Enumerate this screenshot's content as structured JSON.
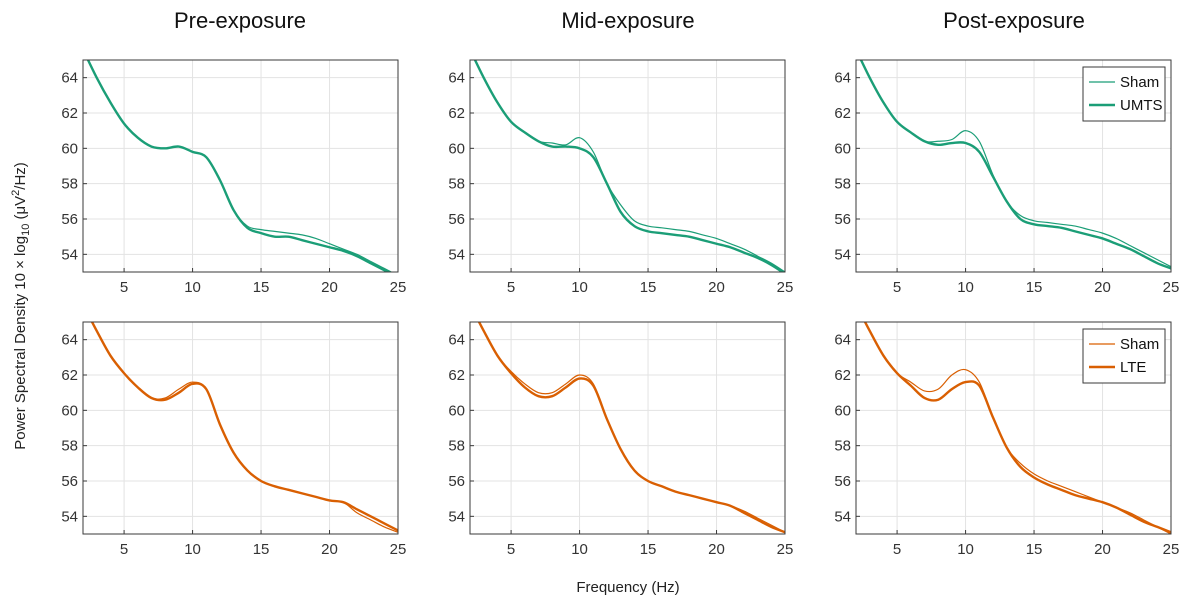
{
  "figure": {
    "col_titles": [
      "Pre-exposure",
      "Mid-exposure",
      "Post-exposure"
    ],
    "ylabel": {
      "prefix": "Power Spectral Density 10 × log",
      "sub": "10",
      "suffix": " (μV",
      "sup": "2",
      "tail": "/Hz)"
    },
    "xlabel": "Frequency (Hz)"
  },
  "chart_data": [
    {
      "type": "line",
      "title": "Pre-exposure",
      "row": 0,
      "col": 0,
      "xlim": [
        2,
        25
      ],
      "ylim": [
        53,
        65
      ],
      "grid": true,
      "xticks": [
        5,
        10,
        15,
        20,
        25
      ],
      "yticks": [
        54,
        56,
        58,
        60,
        62,
        64
      ],
      "x": [
        2,
        3,
        4,
        5,
        6,
        7,
        8,
        9,
        10,
        11,
        12,
        13,
        14,
        15,
        16,
        17,
        18,
        19,
        20,
        21,
        22,
        23,
        24,
        25
      ],
      "series": [
        {
          "name": "Sham",
          "color": "#1b9e77",
          "width": 1.2,
          "values": [
            65.6,
            64.0,
            62.6,
            61.4,
            60.6,
            60.1,
            60.0,
            60.1,
            59.8,
            59.5,
            58.2,
            56.5,
            55.6,
            55.4,
            55.3,
            55.2,
            55.1,
            54.9,
            54.6,
            54.3,
            54.0,
            53.6,
            53.2,
            52.8
          ]
        },
        {
          "name": "UMTS",
          "color": "#1b9e77",
          "width": 2.4,
          "values": [
            65.6,
            64.0,
            62.6,
            61.4,
            60.6,
            60.1,
            60.0,
            60.1,
            59.8,
            59.5,
            58.2,
            56.5,
            55.5,
            55.2,
            55.0,
            55.0,
            54.8,
            54.6,
            54.4,
            54.2,
            53.9,
            53.5,
            53.1,
            52.7
          ]
        }
      ]
    },
    {
      "type": "line",
      "title": "Mid-exposure",
      "row": 0,
      "col": 1,
      "xlim": [
        2,
        25
      ],
      "ylim": [
        53,
        65
      ],
      "grid": true,
      "xticks": [
        5,
        10,
        15,
        20,
        25
      ],
      "yticks": [
        54,
        56,
        58,
        60,
        62,
        64
      ],
      "x": [
        2,
        3,
        4,
        5,
        6,
        7,
        8,
        9,
        10,
        11,
        12,
        13,
        14,
        15,
        16,
        17,
        18,
        19,
        20,
        21,
        22,
        23,
        24,
        25
      ],
      "series": [
        {
          "name": "Sham",
          "color": "#1b9e77",
          "width": 1.2,
          "values": [
            65.6,
            64.0,
            62.6,
            61.5,
            60.9,
            60.4,
            60.3,
            60.2,
            60.6,
            59.8,
            58.0,
            56.8,
            55.9,
            55.6,
            55.5,
            55.4,
            55.3,
            55.1,
            54.9,
            54.6,
            54.3,
            53.9,
            53.5,
            53.0
          ]
        },
        {
          "name": "UMTS",
          "color": "#1b9e77",
          "width": 2.4,
          "values": [
            65.6,
            64.0,
            62.6,
            61.5,
            60.9,
            60.4,
            60.1,
            60.1,
            60.0,
            59.5,
            58.0,
            56.4,
            55.6,
            55.3,
            55.2,
            55.1,
            55.0,
            54.8,
            54.6,
            54.4,
            54.1,
            53.8,
            53.4,
            52.9
          ]
        }
      ]
    },
    {
      "type": "line",
      "title": "Post-exposure",
      "row": 0,
      "col": 2,
      "xlim": [
        2,
        25
      ],
      "ylim": [
        53,
        65
      ],
      "grid": true,
      "legend": "top-right",
      "xticks": [
        5,
        10,
        15,
        20,
        25
      ],
      "yticks": [
        54,
        56,
        58,
        60,
        62,
        64
      ],
      "x": [
        2,
        3,
        4,
        5,
        6,
        7,
        8,
        9,
        10,
        11,
        12,
        13,
        14,
        15,
        16,
        17,
        18,
        19,
        20,
        21,
        22,
        23,
        24,
        25
      ],
      "series": [
        {
          "name": "Sham",
          "color": "#1b9e77",
          "width": 1.2,
          "values": [
            65.6,
            64.0,
            62.6,
            61.5,
            60.9,
            60.4,
            60.4,
            60.5,
            61.0,
            60.4,
            58.5,
            57.0,
            56.2,
            55.9,
            55.8,
            55.7,
            55.6,
            55.4,
            55.2,
            54.9,
            54.5,
            54.1,
            53.7,
            53.3
          ]
        },
        {
          "name": "UMTS",
          "color": "#1b9e77",
          "width": 2.4,
          "values": [
            65.6,
            64.0,
            62.6,
            61.5,
            60.9,
            60.4,
            60.2,
            60.3,
            60.3,
            59.8,
            58.4,
            57.0,
            56.0,
            55.7,
            55.6,
            55.5,
            55.3,
            55.1,
            54.9,
            54.6,
            54.3,
            53.9,
            53.5,
            53.2
          ]
        }
      ]
    },
    {
      "type": "line",
      "title": "",
      "row": 1,
      "col": 0,
      "xlim": [
        2,
        25
      ],
      "ylim": [
        53,
        65
      ],
      "grid": true,
      "xticks": [
        5,
        10,
        15,
        20,
        25
      ],
      "yticks": [
        54,
        56,
        58,
        60,
        62,
        64
      ],
      "x": [
        2,
        3,
        4,
        5,
        6,
        7,
        8,
        9,
        10,
        11,
        12,
        13,
        14,
        15,
        16,
        17,
        18,
        19,
        20,
        21,
        22,
        23,
        24,
        25
      ],
      "series": [
        {
          "name": "Sham",
          "color": "#d95f02",
          "width": 1.2,
          "values": [
            66.0,
            64.5,
            63.1,
            62.1,
            61.3,
            60.7,
            60.7,
            61.2,
            61.6,
            61.2,
            59.2,
            57.6,
            56.6,
            56.0,
            55.7,
            55.5,
            55.3,
            55.1,
            54.9,
            54.8,
            54.2,
            53.8,
            53.4,
            53.1
          ]
        },
        {
          "name": "LTE",
          "color": "#d95f02",
          "width": 2.4,
          "values": [
            66.0,
            64.5,
            63.1,
            62.1,
            61.3,
            60.7,
            60.6,
            61.0,
            61.5,
            61.2,
            59.2,
            57.6,
            56.6,
            56.0,
            55.7,
            55.5,
            55.3,
            55.1,
            54.9,
            54.8,
            54.4,
            54.0,
            53.6,
            53.2
          ]
        }
      ]
    },
    {
      "type": "line",
      "title": "",
      "row": 1,
      "col": 1,
      "xlim": [
        2,
        25
      ],
      "ylim": [
        53,
        65
      ],
      "grid": true,
      "xticks": [
        5,
        10,
        15,
        20,
        25
      ],
      "yticks": [
        54,
        56,
        58,
        60,
        62,
        64
      ],
      "x": [
        2,
        3,
        4,
        5,
        6,
        7,
        8,
        9,
        10,
        11,
        12,
        13,
        14,
        15,
        16,
        17,
        18,
        19,
        20,
        21,
        22,
        23,
        24,
        25
      ],
      "series": [
        {
          "name": "Sham",
          "color": "#d95f02",
          "width": 1.2,
          "values": [
            66.0,
            64.5,
            63.1,
            62.2,
            61.5,
            61.0,
            61.0,
            61.5,
            62.0,
            61.5,
            59.5,
            57.8,
            56.6,
            56.0,
            55.7,
            55.4,
            55.2,
            55.0,
            54.8,
            54.6,
            54.3,
            53.9,
            53.5,
            53.1
          ]
        },
        {
          "name": "LTE",
          "color": "#d95f02",
          "width": 2.4,
          "values": [
            66.0,
            64.5,
            63.1,
            62.1,
            61.3,
            60.8,
            60.8,
            61.3,
            61.8,
            61.4,
            59.5,
            57.8,
            56.6,
            56.0,
            55.7,
            55.4,
            55.2,
            55.0,
            54.8,
            54.6,
            54.2,
            53.8,
            53.4,
            53.1
          ]
        }
      ]
    },
    {
      "type": "line",
      "title": "",
      "row": 1,
      "col": 2,
      "xlim": [
        2,
        25
      ],
      "ylim": [
        53,
        65
      ],
      "grid": true,
      "legend": "top-right",
      "xticks": [
        5,
        10,
        15,
        20,
        25
      ],
      "yticks": [
        54,
        56,
        58,
        60,
        62,
        64
      ],
      "x": [
        2,
        3,
        4,
        5,
        6,
        7,
        8,
        9,
        10,
        11,
        12,
        13,
        14,
        15,
        16,
        17,
        18,
        19,
        20,
        21,
        22,
        23,
        24,
        25
      ],
      "series": [
        {
          "name": "Sham",
          "color": "#d95f02",
          "width": 1.2,
          "values": [
            66.0,
            64.5,
            63.1,
            62.1,
            61.6,
            61.1,
            61.2,
            62.0,
            62.3,
            61.6,
            59.6,
            57.9,
            57.0,
            56.4,
            56.0,
            55.7,
            55.4,
            55.1,
            54.8,
            54.5,
            54.2,
            53.8,
            53.4,
            53.0
          ]
        },
        {
          "name": "LTE",
          "color": "#d95f02",
          "width": 2.4,
          "values": [
            66.0,
            64.5,
            63.1,
            62.1,
            61.4,
            60.7,
            60.6,
            61.2,
            61.6,
            61.4,
            59.6,
            57.9,
            56.8,
            56.2,
            55.8,
            55.5,
            55.2,
            55.0,
            54.8,
            54.5,
            54.1,
            53.7,
            53.4,
            53.1
          ]
        }
      ]
    }
  ]
}
